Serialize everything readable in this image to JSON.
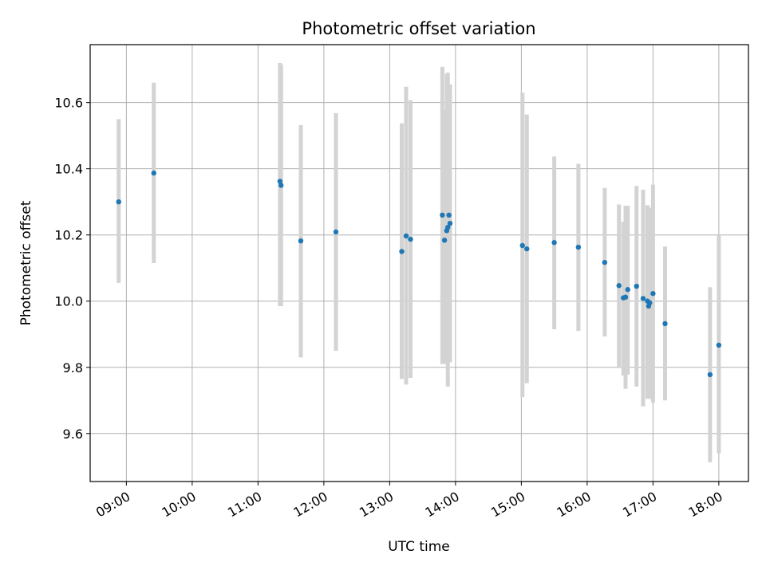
{
  "chart_data": {
    "type": "scatter",
    "title": "Photometric offset variation",
    "xlabel": "UTC time",
    "ylabel": "Photometric offset",
    "xlim": [
      "08:27",
      "18:27"
    ],
    "ylim": [
      9.455,
      10.775
    ],
    "x_ticks": [
      "09:00",
      "10:00",
      "11:00",
      "12:00",
      "13:00",
      "14:00",
      "15:00",
      "16:00",
      "17:00",
      "18:00"
    ],
    "y_ticks": [
      9.6,
      9.8,
      10.0,
      10.2,
      10.4,
      10.6
    ],
    "y_tick_labels": [
      "9.6",
      "9.8",
      "10.0",
      "10.2",
      "10.4",
      "10.6"
    ],
    "grid": true,
    "colors": {
      "point": "#1f77b4",
      "errorbar": "#d3d3d3",
      "grid": "#b0b0b0"
    },
    "series": [
      {
        "points": [
          {
            "x": "08:53",
            "y": 10.3,
            "lo": 10.055,
            "hi": 10.55
          },
          {
            "x": "09:25",
            "y": 10.387,
            "lo": 10.115,
            "hi": 10.66
          },
          {
            "x": "11:20",
            "y": 10.362,
            "lo": 9.985,
            "hi": 10.72
          },
          {
            "x": "11:21",
            "y": 10.35,
            "lo": 9.985,
            "hi": 10.715
          },
          {
            "x": "11:39",
            "y": 10.182,
            "lo": 9.83,
            "hi": 10.532
          },
          {
            "x": "12:11",
            "y": 10.209,
            "lo": 9.85,
            "hi": 10.568
          },
          {
            "x": "13:11",
            "y": 10.15,
            "lo": 9.765,
            "hi": 10.537
          },
          {
            "x": "13:15",
            "y": 10.197,
            "lo": 9.748,
            "hi": 10.648
          },
          {
            "x": "13:19",
            "y": 10.187,
            "lo": 9.768,
            "hi": 10.607
          },
          {
            "x": "13:48",
            "y": 10.26,
            "lo": 9.81,
            "hi": 10.708
          },
          {
            "x": "13:50",
            "y": 10.184,
            "lo": 9.81,
            "hi": 10.578
          },
          {
            "x": "13:52",
            "y": 10.213,
            "lo": 9.83,
            "hi": 10.687
          },
          {
            "x": "13:53",
            "y": 10.223,
            "lo": 9.742,
            "hi": 10.69
          },
          {
            "x": "13:54",
            "y": 10.26,
            "lo": 9.817,
            "hi": 10.655
          },
          {
            "x": "13:55",
            "y": 10.235,
            "lo": 9.815,
            "hi": 10.655
          },
          {
            "x": "15:01",
            "y": 10.168,
            "lo": 9.71,
            "hi": 10.63
          },
          {
            "x": "15:05",
            "y": 10.158,
            "lo": 9.752,
            "hi": 10.564
          },
          {
            "x": "15:30",
            "y": 10.177,
            "lo": 9.915,
            "hi": 10.437
          },
          {
            "x": "15:52",
            "y": 10.163,
            "lo": 9.91,
            "hi": 10.415
          },
          {
            "x": "16:16",
            "y": 10.117,
            "lo": 9.893,
            "hi": 10.342
          },
          {
            "x": "16:29",
            "y": 10.047,
            "lo": 9.798,
            "hi": 10.292
          },
          {
            "x": "16:33",
            "y": 10.01,
            "lo": 9.775,
            "hi": 10.24
          },
          {
            "x": "16:35",
            "y": 10.012,
            "lo": 9.735,
            "hi": 10.288
          },
          {
            "x": "16:37",
            "y": 10.035,
            "lo": 9.778,
            "hi": 10.288
          },
          {
            "x": "16:45",
            "y": 10.045,
            "lo": 9.742,
            "hi": 10.348
          },
          {
            "x": "16:51",
            "y": 10.008,
            "lo": 9.682,
            "hi": 10.337
          },
          {
            "x": "16:55",
            "y": 10.0,
            "lo": 9.705,
            "hi": 10.29
          },
          {
            "x": "16:56",
            "y": 9.985,
            "lo": 9.71,
            "hi": 10.28
          },
          {
            "x": "16:57",
            "y": 9.995,
            "lo": 9.705,
            "hi": 10.282
          },
          {
            "x": "17:00",
            "y": 10.023,
            "lo": 9.693,
            "hi": 10.352
          },
          {
            "x": "17:11",
            "y": 9.932,
            "lo": 9.7,
            "hi": 10.165
          },
          {
            "x": "17:52",
            "y": 9.778,
            "lo": 9.513,
            "hi": 10.042
          },
          {
            "x": "18:00",
            "y": 9.867,
            "lo": 9.54,
            "hi": 10.2
          }
        ]
      }
    ]
  }
}
